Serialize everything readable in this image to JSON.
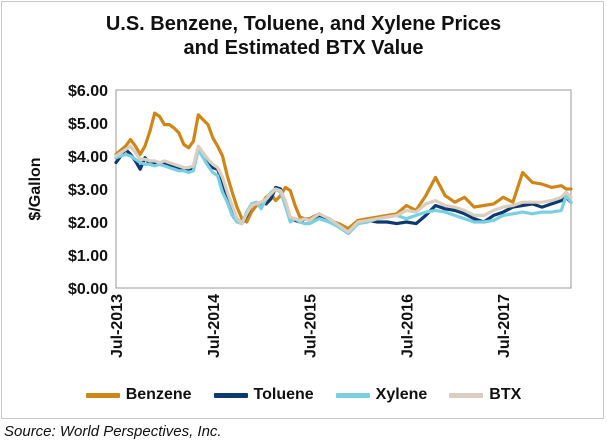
{
  "chart_data": {
    "type": "line",
    "title_lines": [
      "U.S. Benzene, Toluene, and Xylene Prices",
      "and Estimated BTX Value"
    ],
    "ylabel": "$/Gallon",
    "xlabel": "",
    "ylim": [
      0,
      6
    ],
    "x_range": [
      2013.5,
      2018.2
    ],
    "ytick_values": [
      0,
      1,
      2,
      3,
      4,
      5,
      6
    ],
    "yticks": [
      "$0.00",
      "$1.00",
      "$2.00",
      "$3.00",
      "$4.00",
      "$5.00",
      "$6.00"
    ],
    "xtick_values": [
      2013.5,
      2014.5,
      2015.5,
      2016.5,
      2017.5
    ],
    "xticks": [
      "Jul-2013",
      "Jul-2014",
      "Jul-2015",
      "Jul-2016",
      "Jul-2017"
    ],
    "grid": false,
    "legend_position": "bottom",
    "x": [
      2013.5,
      2013.6,
      2013.65,
      2013.7,
      2013.75,
      2013.8,
      2013.85,
      2013.9,
      2013.95,
      2014.0,
      2014.05,
      2014.1,
      2014.15,
      2014.2,
      2014.25,
      2014.3,
      2014.35,
      2014.4,
      2014.45,
      2014.5,
      2014.55,
      2014.6,
      2014.65,
      2014.7,
      2014.75,
      2014.8,
      2014.85,
      2014.9,
      2014.95,
      2015.0,
      2015.05,
      2015.1,
      2015.15,
      2015.2,
      2015.25,
      2015.3,
      2015.35,
      2015.4,
      2015.45,
      2015.5,
      2015.6,
      2015.7,
      2015.8,
      2015.9,
      2016.0,
      2016.1,
      2016.2,
      2016.3,
      2016.4,
      2016.5,
      2016.6,
      2016.7,
      2016.8,
      2016.9,
      2017.0,
      2017.1,
      2017.2,
      2017.3,
      2017.4,
      2017.5,
      2017.6,
      2017.7,
      2017.8,
      2017.9,
      2018.0,
      2018.1,
      2018.15,
      2018.2
    ],
    "series": [
      {
        "name": "Benzene",
        "color": "#d08616",
        "values": [
          4.05,
          4.3,
          4.5,
          4.3,
          4.05,
          4.3,
          4.75,
          5.3,
          5.2,
          4.95,
          4.95,
          4.85,
          4.7,
          4.35,
          4.25,
          4.45,
          5.25,
          5.1,
          4.95,
          4.55,
          4.3,
          4.0,
          3.4,
          2.9,
          2.45,
          2.1,
          2.0,
          2.3,
          2.5,
          2.55,
          2.75,
          2.85,
          2.65,
          2.8,
          3.05,
          2.95,
          2.5,
          2.15,
          2.1,
          2.1,
          2.25,
          2.05,
          1.95,
          1.8,
          2.05,
          2.1,
          2.15,
          2.2,
          2.25,
          2.5,
          2.35,
          2.8,
          3.35,
          2.8,
          2.6,
          2.75,
          2.45,
          2.5,
          2.55,
          2.75,
          2.6,
          3.5,
          3.2,
          3.15,
          3.05,
          3.1,
          3.0,
          3.0
        ]
      },
      {
        "name": "Toluene",
        "color": "#0c3a6e",
        "values": [
          3.8,
          4.2,
          4.05,
          3.85,
          3.6,
          3.95,
          3.75,
          3.8,
          3.75,
          3.8,
          3.75,
          3.65,
          3.6,
          3.6,
          3.55,
          3.65,
          4.2,
          4.0,
          3.75,
          3.65,
          3.6,
          3.2,
          2.75,
          2.45,
          2.1,
          1.95,
          2.2,
          2.5,
          2.55,
          2.6,
          2.55,
          2.7,
          3.05,
          3.0,
          2.5,
          2.1,
          2.05,
          2.0,
          2.1,
          2.05,
          2.2,
          2.1,
          1.9,
          1.7,
          1.95,
          2.05,
          2.0,
          2.0,
          1.95,
          2.0,
          1.95,
          2.2,
          2.5,
          2.4,
          2.35,
          2.25,
          2.1,
          2.0,
          2.2,
          2.3,
          2.45,
          2.5,
          2.55,
          2.45,
          2.55,
          2.65,
          2.75,
          2.6
        ]
      },
      {
        "name": "Xylene",
        "color": "#7ad0e2",
        "values": [
          3.95,
          4.05,
          4.0,
          3.9,
          3.8,
          3.75,
          3.75,
          3.7,
          3.75,
          3.7,
          3.65,
          3.6,
          3.55,
          3.55,
          3.5,
          3.55,
          4.2,
          3.95,
          3.7,
          3.5,
          3.4,
          2.9,
          2.6,
          2.2,
          2.0,
          1.95,
          2.3,
          2.55,
          2.6,
          2.4,
          2.7,
          2.9,
          3.0,
          2.9,
          2.5,
          2.0,
          2.1,
          2.0,
          1.95,
          1.95,
          2.1,
          2.0,
          1.85,
          1.65,
          1.95,
          2.0,
          2.1,
          2.15,
          2.2,
          2.1,
          2.2,
          2.3,
          2.35,
          2.3,
          2.2,
          2.1,
          2.0,
          2.0,
          2.05,
          2.2,
          2.25,
          2.3,
          2.25,
          2.3,
          2.3,
          2.35,
          2.8,
          2.6
        ]
      },
      {
        "name": "BTX",
        "color": "#d9cec0",
        "values": [
          4.0,
          4.2,
          4.3,
          4.1,
          3.9,
          3.9,
          3.85,
          3.85,
          3.8,
          3.85,
          3.8,
          3.75,
          3.7,
          3.65,
          3.65,
          3.7,
          4.3,
          4.1,
          3.9,
          3.75,
          3.65,
          3.35,
          2.9,
          2.5,
          2.1,
          1.95,
          2.25,
          2.5,
          2.55,
          2.6,
          2.7,
          2.85,
          3.0,
          2.95,
          2.65,
          2.15,
          2.1,
          2.05,
          2.1,
          2.05,
          2.25,
          2.1,
          1.9,
          1.7,
          2.0,
          2.05,
          2.1,
          2.15,
          2.2,
          2.35,
          2.3,
          2.55,
          2.65,
          2.5,
          2.45,
          2.35,
          2.2,
          2.2,
          2.35,
          2.45,
          2.5,
          2.6,
          2.6,
          2.6,
          2.65,
          2.75,
          2.9,
          2.75
        ]
      }
    ]
  },
  "source_text": "Source: World Perspectives, Inc."
}
